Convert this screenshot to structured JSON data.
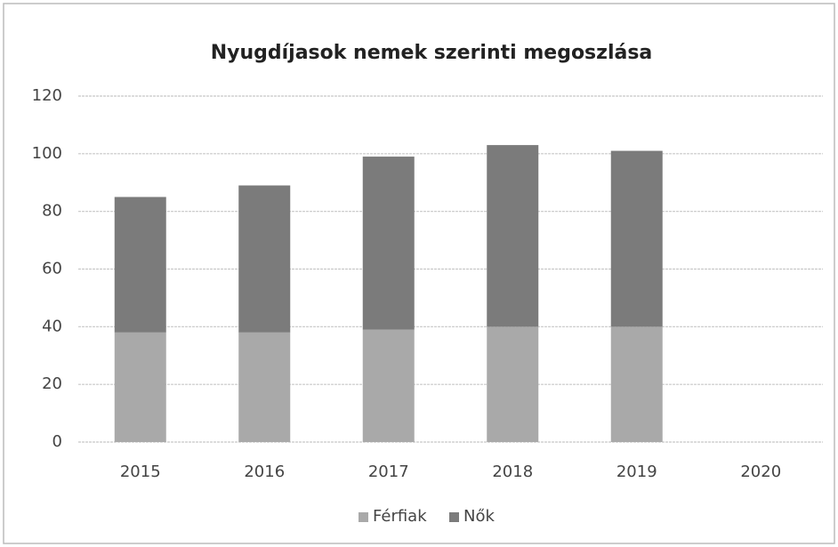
{
  "chart_data": {
    "type": "stacked_bar",
    "title": "Nyugdíjasok nemek szerinti megoszlása",
    "categories": [
      "2015",
      "2016",
      "2017",
      "2018",
      "2019",
      "2020"
    ],
    "series": [
      {
        "name": "Férfiak",
        "color": "#a9a9a9",
        "values": [
          38,
          38,
          39,
          40,
          40,
          null
        ]
      },
      {
        "name": "Nők",
        "color": "#7b7b7b",
        "values": [
          47,
          51,
          60,
          63,
          61,
          null
        ]
      }
    ],
    "ylim": [
      0,
      120
    ],
    "yticks": [
      0,
      20,
      40,
      60,
      80,
      100,
      120
    ],
    "grid": true,
    "legend": "bottom"
  }
}
